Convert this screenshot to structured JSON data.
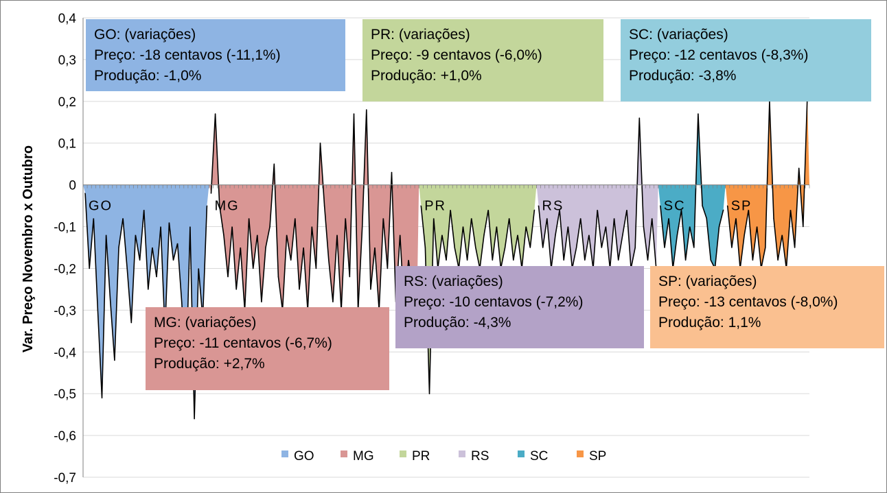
{
  "chart_data": {
    "type": "area",
    "title": "",
    "xlabel": "",
    "ylabel": "Var. Preço Novembro x Outubro",
    "ylim": [
      -0.7,
      0.4
    ],
    "yticks": [
      "-0,7",
      "-0,6",
      "-0,5",
      "-0,4",
      "-0,3",
      "-0,2",
      "-0,1",
      "0",
      "0,1",
      "0,2",
      "0,3",
      "0,4"
    ],
    "grid": true,
    "legend_position": "bottom",
    "series": [
      {
        "name": "GO",
        "color": "#8EB4E3",
        "segment_label": "GO",
        "values": [
          -0.02,
          -0.2,
          -0.08,
          -0.3,
          -0.51,
          -0.12,
          -0.28,
          -0.42,
          -0.15,
          -0.08,
          -0.2,
          -0.33,
          -0.12,
          -0.18,
          -0.06,
          -0.25,
          -0.15,
          -0.22,
          -0.1,
          -0.35,
          -0.09,
          -0.18,
          -0.14,
          -0.28,
          -0.47,
          -0.1,
          -0.56,
          -0.2,
          -0.32,
          -0.05
        ]
      },
      {
        "name": "MG",
        "color": "#D99694",
        "segment_label": "MG",
        "values": [
          -0.02,
          0.17,
          -0.05,
          -0.12,
          -0.22,
          -0.1,
          -0.25,
          -0.15,
          -0.3,
          -0.08,
          -0.2,
          -0.12,
          -0.28,
          -0.15,
          -0.1,
          0.05,
          -0.22,
          -0.3,
          -0.12,
          -0.18,
          -0.08,
          -0.25,
          -0.15,
          -0.3,
          -0.1,
          -0.2,
          0.1,
          -0.05,
          -0.18,
          -0.28,
          -0.12,
          -0.3,
          -0.08,
          -0.22,
          0.17,
          -0.3,
          -0.1,
          0.18,
          -0.25,
          -0.15,
          -0.3,
          -0.08,
          -0.2,
          0.03,
          -0.28,
          -0.12,
          -0.3,
          -0.18,
          -0.25,
          -0.3
        ]
      },
      {
        "name": "PR",
        "color": "#C3D69B",
        "segment_label": "PR",
        "values": [
          -0.05,
          -0.15,
          -0.5,
          -0.08,
          -0.2,
          -0.12,
          -0.18,
          -0.06,
          -0.15,
          -0.2,
          -0.1,
          -0.18,
          -0.08,
          -0.15,
          -0.2,
          -0.12,
          -0.06,
          -0.18,
          -0.1,
          -0.2,
          -0.15,
          -0.08,
          -0.18,
          -0.12,
          -0.2,
          -0.1,
          -0.15,
          -0.06
        ]
      },
      {
        "name": "RS",
        "color": "#CCC1DA",
        "segment_label": "RS",
        "values": [
          -0.05,
          -0.15,
          -0.08,
          -0.2,
          -0.12,
          -0.06,
          -0.18,
          -0.1,
          -0.2,
          -0.15,
          -0.08,
          -0.18,
          -0.12,
          -0.2,
          -0.06,
          -0.15,
          -0.1,
          -0.2,
          -0.08,
          -0.18,
          -0.12,
          -0.06,
          -0.2,
          -0.15,
          0.16,
          -0.1,
          -0.18,
          -0.08,
          -0.2
        ]
      },
      {
        "name": "SC",
        "color": "#4BACC6",
        "segment_label": "SC",
        "values": [
          -0.05,
          -0.15,
          -0.08,
          -0.2,
          -0.12,
          -0.06,
          -0.18,
          -0.1,
          -0.15,
          0.17,
          -0.05,
          -0.08,
          -0.18,
          -0.2,
          -0.1,
          -0.06
        ]
      },
      {
        "name": "SP",
        "color": "#F79646",
        "segment_label": "SP",
        "values": [
          -0.05,
          -0.15,
          -0.08,
          -0.2,
          -0.12,
          -0.06,
          -0.18,
          -0.1,
          -0.2,
          -0.15,
          0.2,
          -0.08,
          -0.18,
          -0.12,
          -0.2,
          -0.06,
          -0.15,
          0.04,
          -0.1,
          0.21
        ]
      }
    ],
    "annotations": [
      {
        "state": "GO",
        "title": "GO: (variações)",
        "price": "Preço: -18 centavos (-11,1%)",
        "production": "Produção: -1,0%",
        "color": "#8EB4E3"
      },
      {
        "state": "PR",
        "title": "PR: (variações)",
        "price": "Preço: -9 centavos (-6,0%)",
        "production": "Produção: +1,0%",
        "color": "#C3D69B"
      },
      {
        "state": "SC",
        "title": "SC: (variações)",
        "price": "Preço: -12 centavos (-8,3%)",
        "production": "Produção: -3,8%",
        "color": "#93CDDD"
      },
      {
        "state": "MG",
        "title": "MG: (variações)",
        "price": "Preço: -11 centavos (-6,7%)",
        "production": "Produção: +2,7%",
        "color": "#D99694"
      },
      {
        "state": "RS",
        "title": "RS: (variações)",
        "price": "Preço: -10 centavos (-7,2%)",
        "production": "Produção: -4,3%",
        "color": "#B3A2C7"
      },
      {
        "state": "SP",
        "title": "SP: (variações)",
        "price": "Preço: -13 centavos (-8,0%)",
        "production": "Produção: 1,1%",
        "color": "#FAC090"
      }
    ]
  }
}
